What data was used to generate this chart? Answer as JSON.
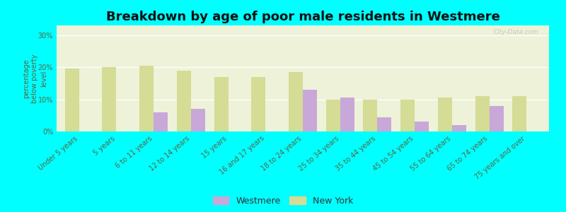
{
  "title": "Breakdown by age of poor male residents in Westmere",
  "categories": [
    "Under 5 years",
    "5 years",
    "6 to 11 years",
    "12 to 14 years",
    "15 years",
    "16 and 17 years",
    "18 to 24 years",
    "25 to 34 years",
    "35 to 44 years",
    "45 to 54 years",
    "55 to 64 years",
    "65 to 74 years",
    "75 years and over"
  ],
  "westmere_values": [
    0,
    0,
    6,
    7,
    0,
    0,
    13,
    10.5,
    4.5,
    3,
    2,
    8,
    0
  ],
  "newyork_values": [
    19.5,
    20,
    20.5,
    19,
    17,
    17,
    18.5,
    10,
    10,
    10,
    10.5,
    11,
    11
  ],
  "westmere_color": "#c8a8d8",
  "newyork_color": "#d4dc96",
  "background_color": "#00ffff",
  "plot_bg": "#eef2d8",
  "ylabel": "percentage\nbelow poverty\nlevel",
  "yticks": [
    0,
    10,
    20,
    30
  ],
  "ytick_labels": [
    "0%",
    "10%",
    "20%",
    "30%"
  ],
  "ylim": [
    0,
    33
  ],
  "title_fontsize": 13,
  "tick_fontsize": 7,
  "bar_width": 0.38,
  "watermark": "City-Data.com",
  "legend_labels": [
    "Westmere",
    "New York"
  ]
}
